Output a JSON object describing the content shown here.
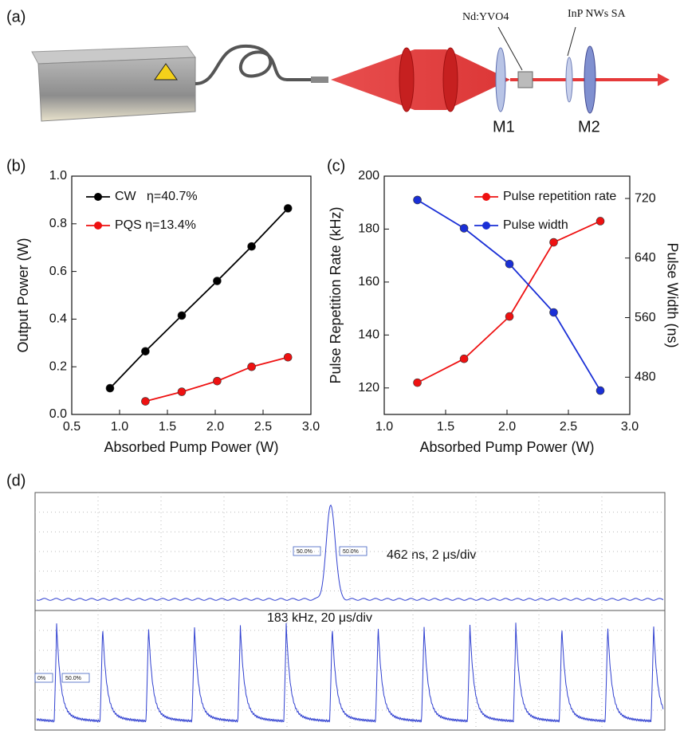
{
  "diagram": {
    "panel": "(a)",
    "crystal_label": "Nd:YVO4",
    "sa_label": "InP NWs SA",
    "mirror1": "M1",
    "mirror2": "M2"
  },
  "chart_data": [
    {
      "type": "line",
      "panel": "(b)",
      "x_label": "Absorbed Pump Power (W)",
      "y_label": "Output Power (W)",
      "xlim": [
        0.5,
        3.0
      ],
      "xticks": [
        0.5,
        {
          "value": 1,
          "label": "1.0"
        },
        1.5,
        {
          "value": 2,
          "label": "2.0"
        },
        2.5,
        {
          "value": 3,
          "label": "3.0"
        }
      ],
      "ylim": [
        0,
        1
      ],
      "yticks": [
        {
          "value": 0,
          "label": "0.0"
        },
        0.2,
        0.4,
        0.6,
        0.8,
        {
          "value": 1,
          "label": "1.0"
        }
      ],
      "legend": "upper-left",
      "series": [
        {
          "name": "CW   η=40.7%",
          "color": "#000000",
          "x": [
            0.9,
            1.27,
            1.65,
            2.02,
            2.38,
            2.76
          ],
          "values": [
            0.11,
            0.265,
            0.415,
            0.56,
            0.705,
            0.865
          ]
        },
        {
          "name": "PQS η=13.4%",
          "color": "#ee1111",
          "x": [
            1.27,
            1.65,
            2.02,
            2.38,
            2.76
          ],
          "values": [
            0.055,
            0.095,
            0.14,
            0.2,
            0.24
          ]
        }
      ]
    },
    {
      "type": "line",
      "panel": "(c)",
      "x_label": "Absorbed Pump Power (W)",
      "y_label": "Pulse Repetition Rate (kHz)",
      "y2_label": "Pulse Width (ns)",
      "xlim": [
        1.0,
        3.0
      ],
      "xticks": [
        {
          "value": 1,
          "label": "1.0"
        },
        1.5,
        {
          "value": 2,
          "label": "2.0"
        },
        2.5,
        {
          "value": 3,
          "label": "3.0"
        }
      ],
      "ylim": [
        110,
        200
      ],
      "yticks": [
        120,
        140,
        160,
        180,
        200
      ],
      "y2lim": [
        430,
        750
      ],
      "y2ticks": [
        480,
        560,
        640,
        720
      ],
      "legend": "upper-right",
      "series": [
        {
          "name": "Pulse repetition rate",
          "color": "#ee1111",
          "x": [
            1.27,
            1.65,
            2.02,
            2.38,
            2.76
          ],
          "values": [
            122,
            131,
            147,
            175,
            183
          ]
        },
        {
          "name": "Pulse width",
          "color": "#1a2fd6",
          "axis": "y2",
          "x": [
            1.27,
            1.65,
            2.02,
            2.38,
            2.76
          ],
          "values": [
            718,
            680,
            632,
            567,
            462
          ]
        }
      ]
    }
  ],
  "traces": {
    "panel": "(d)",
    "top_annotation": "462 ns, 2 μs/div",
    "bottom_annotation": "183 kHz, 20 μs/div",
    "top_cursor_left": "50.0%",
    "top_cursor_right": "50.0%",
    "bottom_cursor_left": "0%",
    "bottom_cursor_right": "50.0%"
  }
}
